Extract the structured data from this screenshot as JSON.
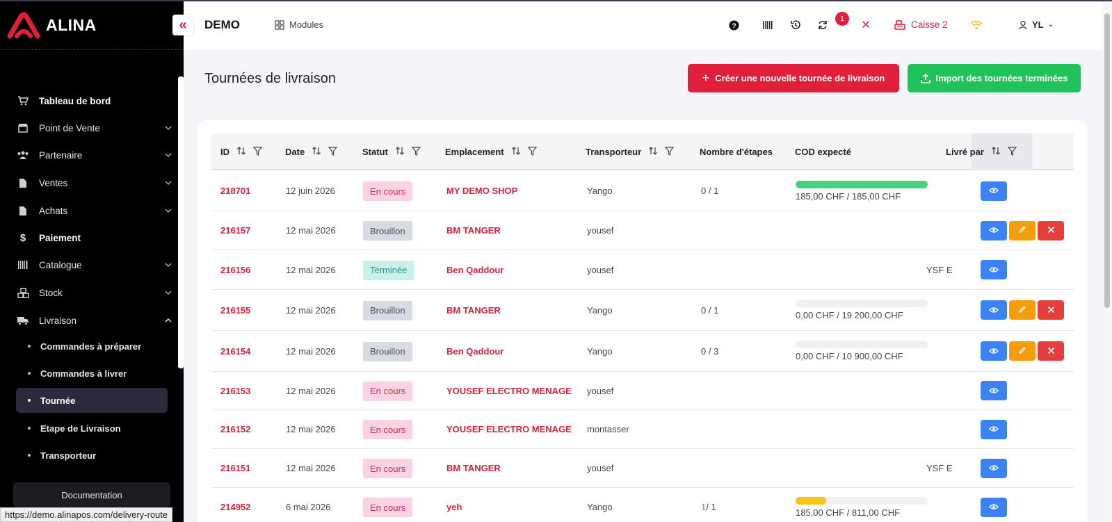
{
  "app": {
    "brand": "ALINA",
    "store": "DEMO",
    "modules_label": "Modules"
  },
  "header": {
    "caisse_label": "Caisse 2",
    "user_initials": "YL",
    "notification_count": "1",
    "icons": [
      "help-icon",
      "barcode-icon",
      "history-icon",
      "sync-icon",
      "close-icon",
      "register-icon",
      "wifi-icon",
      "user-icon"
    ]
  },
  "sidebar": {
    "items": [
      {
        "label": "Tableau de bord",
        "icon": "cart-icon"
      },
      {
        "label": "Point de Vente",
        "icon": "store-icon"
      },
      {
        "label": "Partenaire",
        "icon": "users-icon"
      },
      {
        "label": "Ventes",
        "icon": "file-icon"
      },
      {
        "label": "Achats",
        "icon": "file-icon"
      },
      {
        "label": "Paiement",
        "icon": "dollar-icon"
      },
      {
        "label": "Catalogue",
        "icon": "barcode-icon"
      },
      {
        "label": "Stock",
        "icon": "boxes-icon"
      },
      {
        "label": "Livraison",
        "icon": "truck-icon"
      }
    ],
    "subitems": [
      {
        "label": "Commandes à préparer"
      },
      {
        "label": "Commandes à livrer"
      },
      {
        "label": "Tournée"
      },
      {
        "label": "Etape de Livraison"
      },
      {
        "label": "Transporteur"
      }
    ],
    "documentation": "Documentation"
  },
  "page": {
    "title": "Tournées de livraison",
    "create_button": "Créer une nouvelle tournée de livraison",
    "import_button": "Import des tournées terminées"
  },
  "table": {
    "columns": [
      "ID",
      "Date",
      "Statut",
      "Emplacement",
      "Transporteur",
      "Nombre d'étapes",
      "COD expecté",
      "Livré par"
    ],
    "rows": [
      {
        "id": "218701",
        "date": "12 juin 2026",
        "status": "En cours",
        "location": "MY DEMO SHOP",
        "carrier": "Yango",
        "steps": "0 / 1",
        "cod": "185,00 CHF / 185,00 CHF",
        "cod_fraction": 1.0,
        "cod_color": "#4ccf7e",
        "delivered_by": "",
        "actions": [
          "view"
        ]
      },
      {
        "id": "216157",
        "date": "12 mai 2026",
        "status": "Brouillon",
        "location": "BM TANGER",
        "carrier": "yousef",
        "steps": "",
        "cod": "",
        "delivered_by": "",
        "actions": [
          "view",
          "edit",
          "delete"
        ]
      },
      {
        "id": "216156",
        "date": "12 mai 2026",
        "status": "Terminée",
        "location": "Ben Qaddour",
        "carrier": "yousef",
        "steps": "",
        "cod": "",
        "delivered_by": "YSF E",
        "actions": [
          "view"
        ]
      },
      {
        "id": "216155",
        "date": "12 mai 2026",
        "status": "Brouillon",
        "location": "BM TANGER",
        "carrier": "Yango",
        "steps": "0 / 1",
        "cod": "0,00 CHF / 19 200,00 CHF",
        "cod_fraction": 0.0,
        "cod_color": "#4ccf7e",
        "delivered_by": "",
        "actions": [
          "view",
          "edit",
          "delete"
        ]
      },
      {
        "id": "216154",
        "date": "12 mai 2026",
        "status": "Brouillon",
        "location": "Ben Qaddour",
        "carrier": "Yango",
        "steps": "0 / 3",
        "cod": "0,00 CHF / 10 900,00 CHF",
        "cod_fraction": 0.0,
        "cod_color": "#4ccf7e",
        "delivered_by": "",
        "actions": [
          "view",
          "edit",
          "delete"
        ]
      },
      {
        "id": "216153",
        "date": "12 mai 2026",
        "status": "En cours",
        "location": "YOUSEF ELECTRO MENAGE",
        "carrier": "yousef",
        "steps": "",
        "cod": "",
        "delivered_by": "",
        "actions": [
          "view"
        ]
      },
      {
        "id": "216152",
        "date": "12 mai 2026",
        "status": "En cours",
        "location": "YOUSEF ELECTRO MENAGE",
        "carrier": "montasser",
        "steps": "",
        "cod": "",
        "delivered_by": "",
        "actions": [
          "view"
        ]
      },
      {
        "id": "216151",
        "date": "12 mai 2026",
        "status": "En cours",
        "location": "BM TANGER",
        "carrier": "yousef",
        "steps": "",
        "cod": "",
        "delivered_by": "YSF E",
        "actions": [
          "view"
        ]
      },
      {
        "id": "214952",
        "date": "6 mai 2026",
        "status": "En cours",
        "location": "yeh",
        "carrier": "Yango",
        "steps_done": "1",
        "steps_total": " / 1",
        "cod": "185,00 CHF / 811,00 CHF",
        "cod_fraction": 0.23,
        "cod_color": "#f5c518",
        "delivered_by": "",
        "actions": [
          "view"
        ]
      }
    ]
  },
  "status_bar_url": "https://demo.alinapos.com/delivery-route"
}
